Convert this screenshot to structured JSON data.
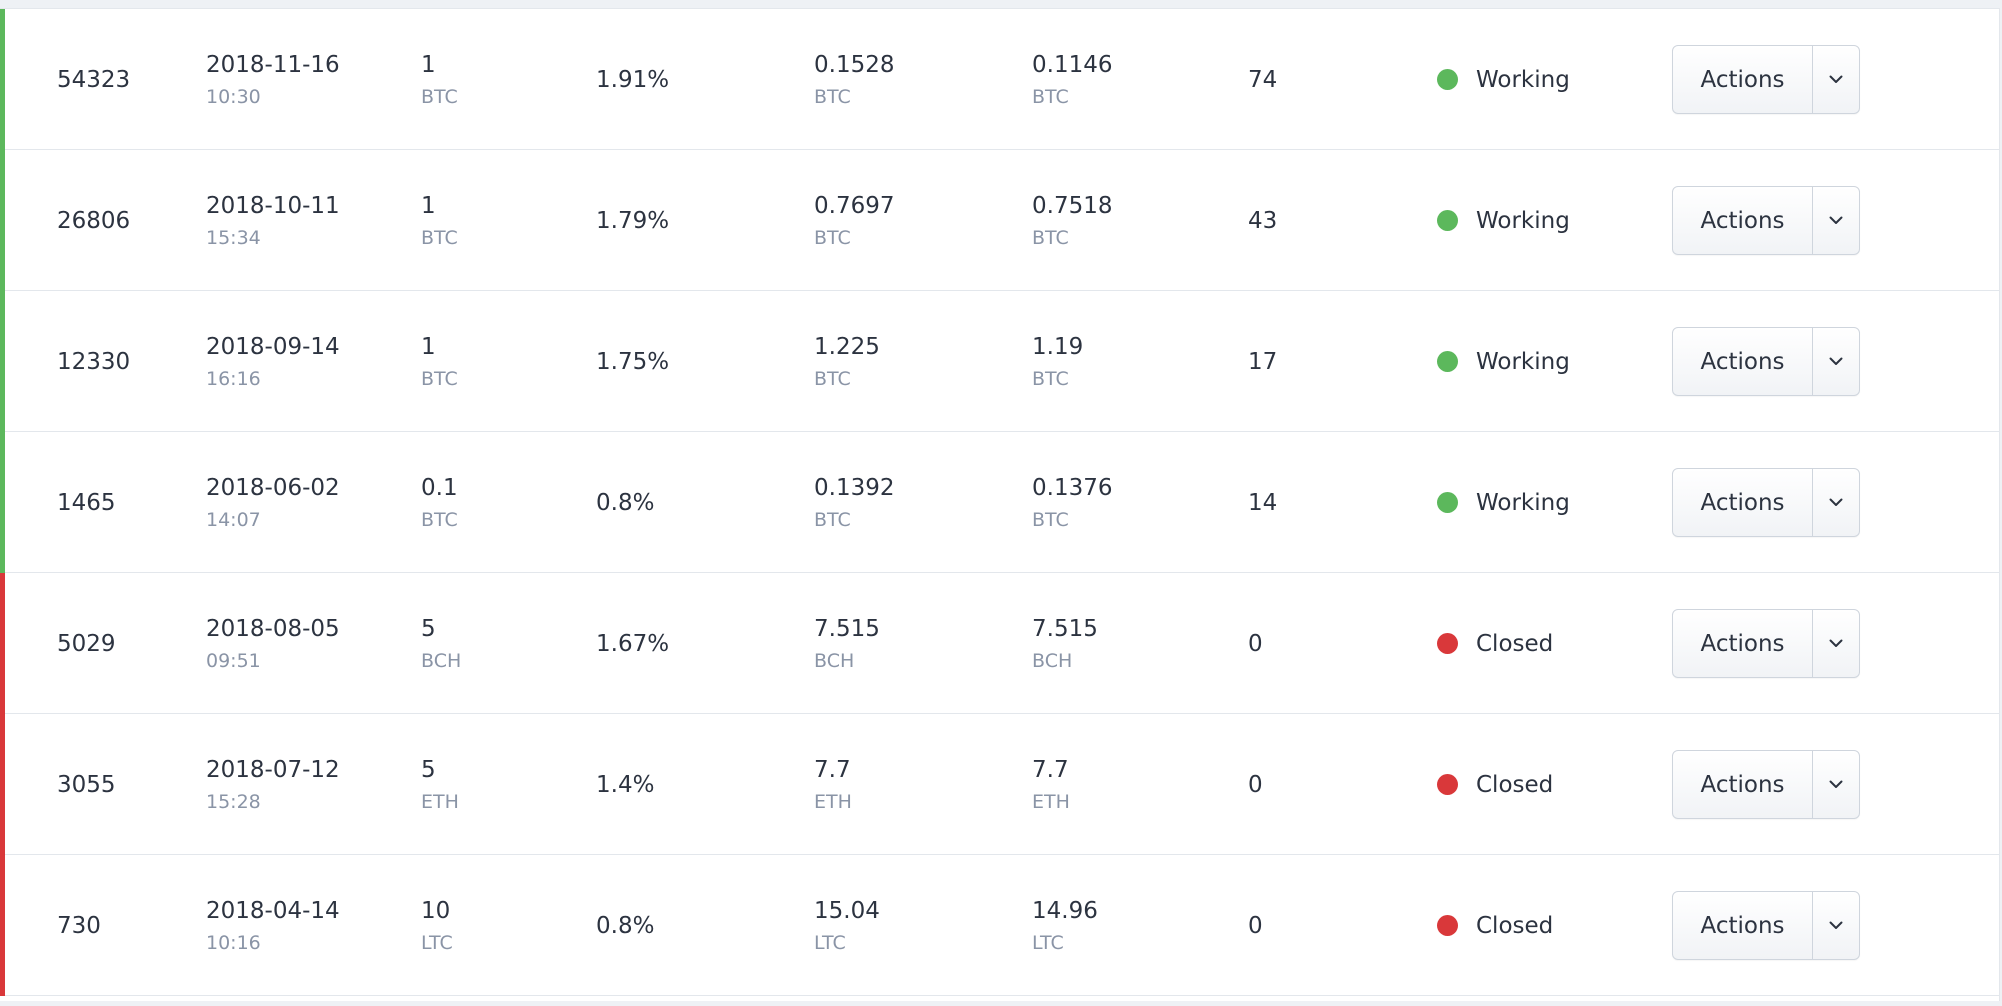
{
  "colors": {
    "working": "#5cb85c",
    "closed": "#d9383a"
  },
  "rows": [
    {
      "id": "54323",
      "date": "2018-11-16",
      "time": "10:30",
      "amount": "1",
      "amount_currency": "BTC",
      "rate": "1.91%",
      "value1": "0.1528",
      "value1_currency": "BTC",
      "value2": "0.1146",
      "value2_currency": "BTC",
      "count": "74",
      "status": "Working",
      "status_color": "#5cb85c",
      "action_label": "Actions",
      "action_icon": "chevron-down-icon"
    },
    {
      "id": "26806",
      "date": "2018-10-11",
      "time": "15:34",
      "amount": "1",
      "amount_currency": "BTC",
      "rate": "1.79%",
      "value1": "0.7697",
      "value1_currency": "BTC",
      "value2": "0.7518",
      "value2_currency": "BTC",
      "count": "43",
      "status": "Working",
      "status_color": "#5cb85c",
      "action_label": "Actions",
      "action_icon": "chevron-down-icon"
    },
    {
      "id": "12330",
      "date": "2018-09-14",
      "time": "16:16",
      "amount": "1",
      "amount_currency": "BTC",
      "rate": "1.75%",
      "value1": "1.225",
      "value1_currency": "BTC",
      "value2": "1.19",
      "value2_currency": "BTC",
      "count": "17",
      "status": "Working",
      "status_color": "#5cb85c",
      "action_label": "Actions",
      "action_icon": "chevron-down-icon"
    },
    {
      "id": "1465",
      "date": "2018-06-02",
      "time": "14:07",
      "amount": "0.1",
      "amount_currency": "BTC",
      "rate": "0.8%",
      "value1": "0.1392",
      "value1_currency": "BTC",
      "value2": "0.1376",
      "value2_currency": "BTC",
      "count": "14",
      "status": "Working",
      "status_color": "#5cb85c",
      "action_label": "Actions",
      "action_icon": "chevron-down-icon"
    },
    {
      "id": "5029",
      "date": "2018-08-05",
      "time": "09:51",
      "amount": "5",
      "amount_currency": "BCH",
      "rate": "1.67%",
      "value1": "7.515",
      "value1_currency": "BCH",
      "value2": "7.515",
      "value2_currency": "BCH",
      "count": "0",
      "status": "Closed",
      "status_color": "#d9383a",
      "action_label": "Actions",
      "action_icon": "chevron-down-icon"
    },
    {
      "id": "3055",
      "date": "2018-07-12",
      "time": "15:28",
      "amount": "5",
      "amount_currency": "ETH",
      "rate": "1.4%",
      "value1": "7.7",
      "value1_currency": "ETH",
      "value2": "7.7",
      "value2_currency": "ETH",
      "count": "0",
      "status": "Closed",
      "status_color": "#d9383a",
      "action_label": "Actions",
      "action_icon": "chevron-down-icon"
    },
    {
      "id": "730",
      "date": "2018-04-14",
      "time": "10:16",
      "amount": "10",
      "amount_currency": "LTC",
      "rate": "0.8%",
      "value1": "15.04",
      "value1_currency": "LTC",
      "value2": "14.96",
      "value2_currency": "LTC",
      "count": "0",
      "status": "Closed",
      "status_color": "#d9383a",
      "action_label": "Actions",
      "action_icon": "chevron-down-icon"
    }
  ]
}
